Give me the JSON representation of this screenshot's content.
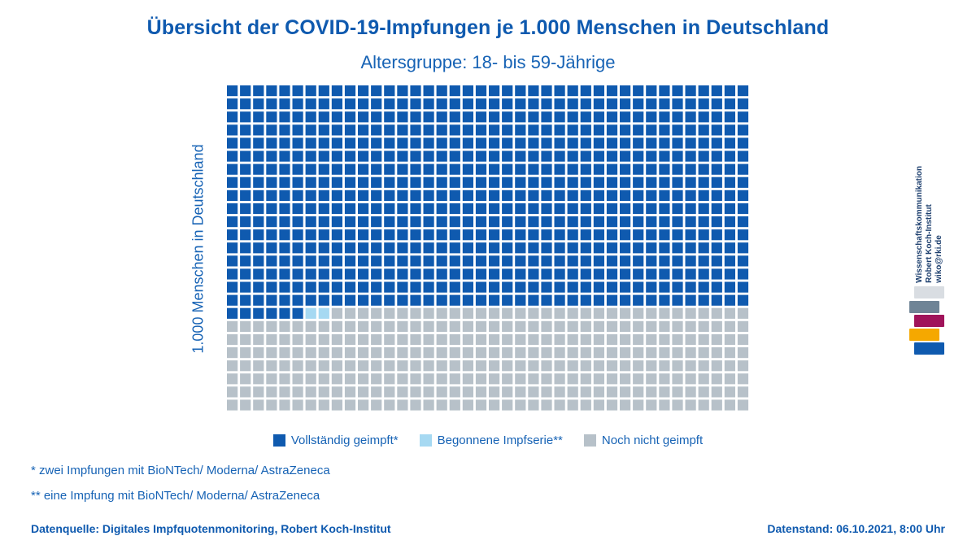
{
  "title": "Übersicht der COVID-19-Impfungen je 1.000 Menschen in Deutschland",
  "subtitle": "Altersgruppe: 18- bis 59-Jährige",
  "chart_data": {
    "type": "waffle",
    "total": 1000,
    "columns": 40,
    "rows": 25,
    "ylabel": "1.000 Menschen in Deutschland",
    "categories": [
      {
        "name": "Vollständig geimpft*",
        "value": 686,
        "color": "#0f5aaf"
      },
      {
        "name": "Begonnene Impfserie**",
        "value": 2,
        "color": "#a6d9f2"
      },
      {
        "name": "Noch nicht geimpft",
        "value": 312,
        "color": "#b7c1c9"
      }
    ]
  },
  "legend": {
    "items": [
      "Vollständig geimpft*",
      "Begonnene Impfserie**",
      "Noch nicht geimpft"
    ],
    "colors": [
      "#0f5aaf",
      "#a6d9f2",
      "#b7c1c9"
    ]
  },
  "notes": {
    "note1": "* zwei Impfungen mit BioNTech/ Moderna/ AstraZeneca",
    "note2": "** eine Impfung mit BioNTech/ Moderna/ AstraZeneca"
  },
  "footer": {
    "source": "Datenquelle: Digitales Impfquotenmonitoring, Robert Koch-Institut",
    "stand": "Datenstand: 06.10.2021, 8:00 Uhr"
  },
  "credit": {
    "line1": "Wissenschaftskommunikation",
    "line2": "Robert Koch-Institut",
    "line3": "wiko@rki.de"
  },
  "logo": {
    "name": "rki-logo",
    "colors": [
      "#d9dde2",
      "#6f8496",
      "#a0135a",
      "#f5a800",
      "#0f5aaf"
    ]
  }
}
